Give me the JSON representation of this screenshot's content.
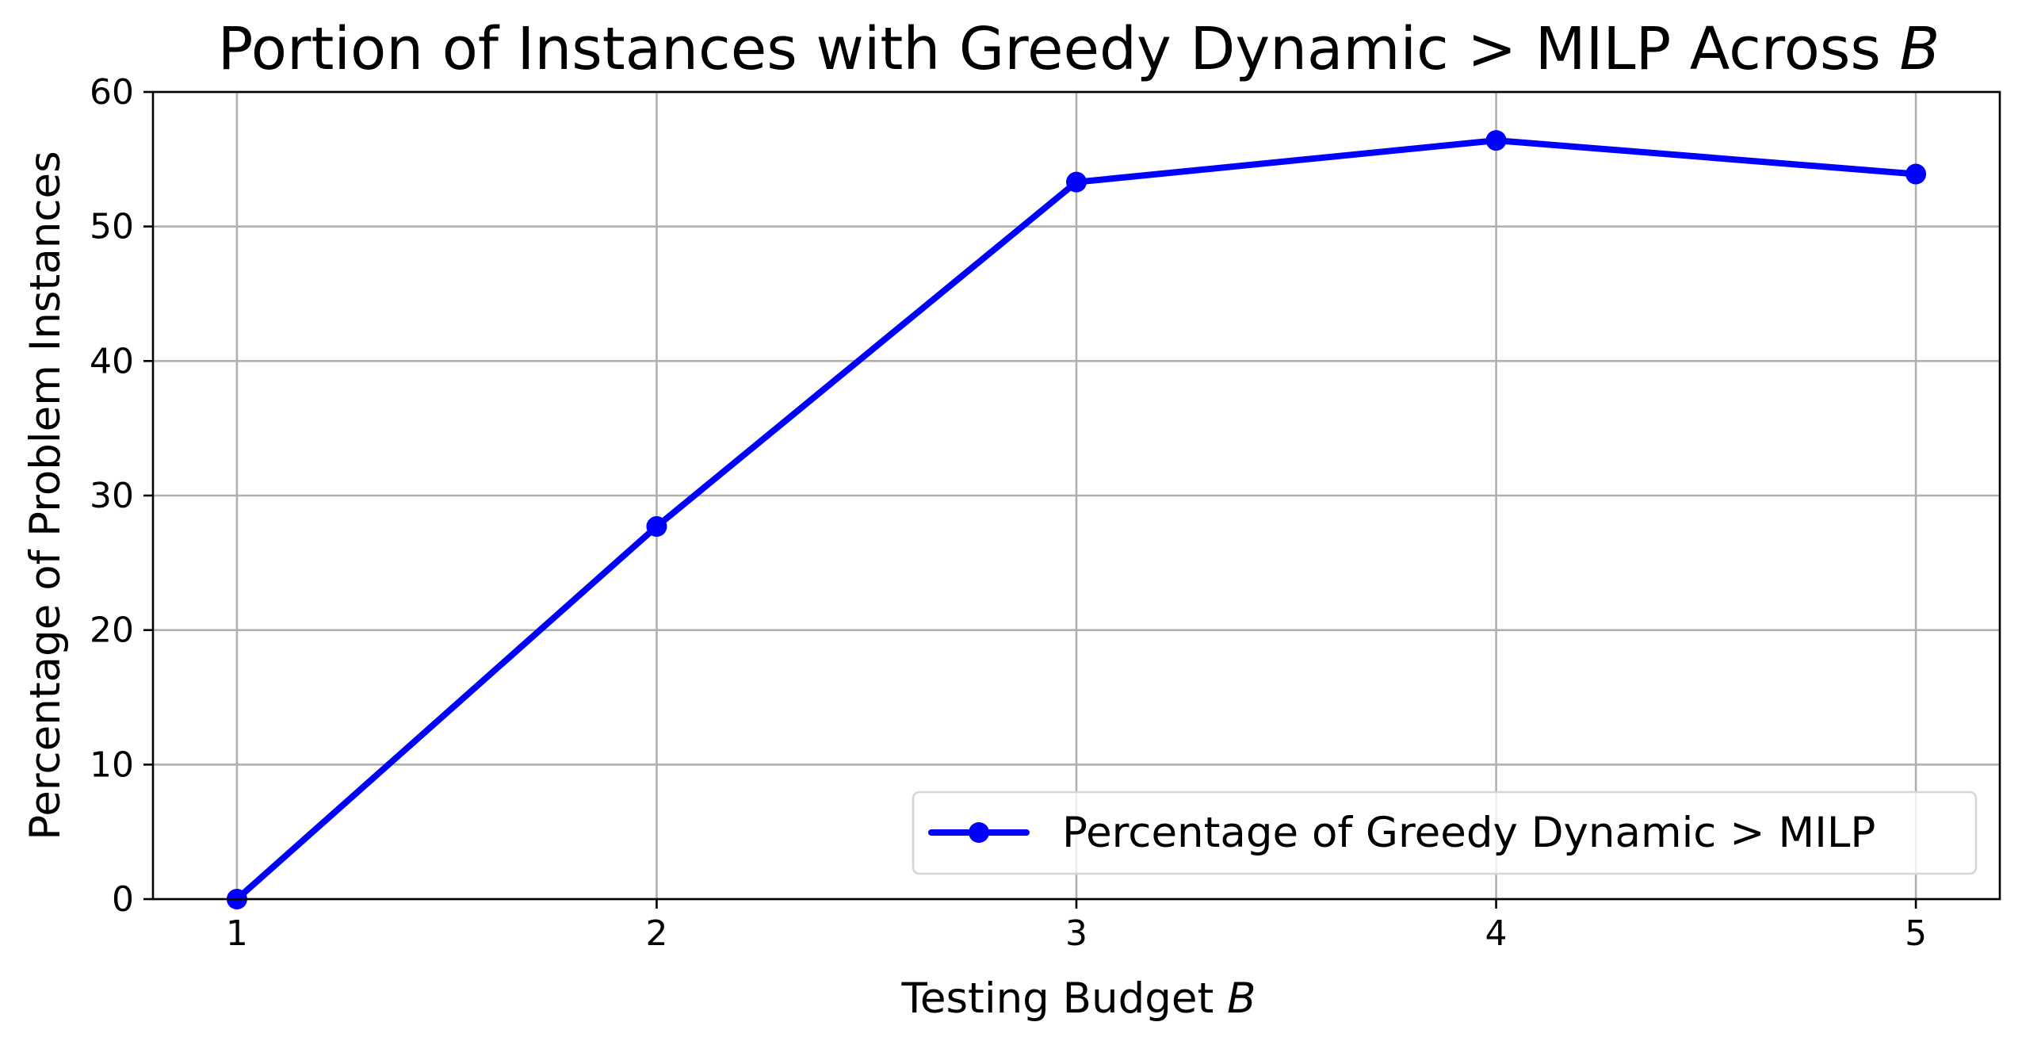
{
  "chart_data": {
    "type": "line",
    "title": "Portion of Instances with Greedy Dynamic > MILP Across",
    "title_var": "B",
    "xlabel": "Testing Budget",
    "xlabel_var": "B",
    "ylabel": "Percentage of Problem Instances",
    "x": [
      1,
      2,
      3,
      4,
      5
    ],
    "xlim": [
      0.8,
      5.2
    ],
    "ylim": [
      0,
      60
    ],
    "xticks": [
      1,
      2,
      3,
      4,
      5
    ],
    "yticks": [
      0,
      10,
      20,
      30,
      40,
      50,
      60
    ],
    "grid": true,
    "legend_position": "lower-right",
    "series": [
      {
        "name": "Percentage of Greedy Dynamic > MILP",
        "color": "#0000ff",
        "marker": "circle",
        "values": [
          0,
          27.7,
          53.3,
          56.4,
          53.9
        ]
      }
    ]
  }
}
